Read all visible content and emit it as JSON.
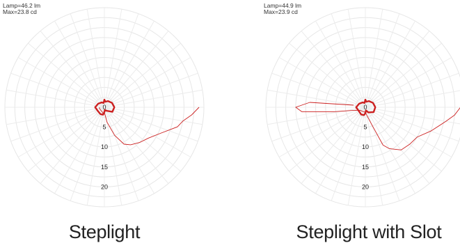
{
  "chart_data": [
    {
      "type": "polar",
      "title": "",
      "info": {
        "lamp": "Lamp=46.2 lm",
        "max": "Max=23.8 cd"
      },
      "radial_ticks": [
        "0",
        "5",
        "10",
        "15",
        "20"
      ],
      "rmax": 25,
      "caption": "Steplight",
      "curves": [
        {
          "name": "",
          "style": "thin",
          "angles_deg": [
            0,
            5,
            10,
            15,
            25,
            35,
            45,
            55,
            62,
            70,
            80,
            88,
            92,
            95,
            100,
            105,
            115,
            130,
            150,
            170,
            180
          ],
          "values_cd": [
            23.8,
            22.0,
            20.0,
            19.0,
            15.5,
            13.5,
            12.5,
            11.5,
            10.5,
            7.5,
            3.8,
            1.5,
            1.0,
            1.0,
            2.0,
            1.5,
            1.3,
            1.2,
            1.2,
            1.3,
            1.2
          ]
        },
        {
          "name": "",
          "style": "thick",
          "angles_deg": [
            0,
            30,
            60,
            80,
            90,
            100,
            120,
            150,
            180,
            210,
            240,
            260,
            270,
            280,
            300,
            330,
            360
          ],
          "values_cd": [
            2.5,
            2.3,
            1.0,
            0.7,
            1.2,
            1.9,
            2.0,
            1.9,
            2.3,
            1.8,
            1.4,
            1.1,
            1.9,
            1.4,
            1.8,
            2.2,
            2.5
          ]
        }
      ]
    },
    {
      "type": "polar",
      "title": "",
      "info": {
        "lamp": "Lamp=44.9 lm",
        "max": "Max=23.9 cd"
      },
      "radial_ticks": [
        "0",
        "5",
        "10",
        "15",
        "20"
      ],
      "rmax": 25,
      "caption": "Steplight with Slot",
      "curves": [
        {
          "name": "",
          "style": "thin",
          "angles_deg": [
            0,
            5,
            10,
            20,
            30,
            40,
            50,
            60,
            65,
            70,
            80,
            90,
            110,
            130,
            150,
            165,
            172,
            176,
            180,
            185,
            190
          ],
          "values_cd": [
            23.9,
            22.5,
            20.5,
            17.5,
            15.0,
            14.5,
            14.0,
            12.0,
            10.5,
            4.5,
            2.0,
            1.3,
            1.2,
            1.3,
            1.5,
            3.0,
            8.0,
            16.0,
            17.5,
            14.0,
            3.0
          ]
        },
        {
          "name": "",
          "style": "thick",
          "angles_deg": [
            0,
            30,
            60,
            80,
            90,
            100,
            120,
            150,
            180,
            210,
            240,
            260,
            270,
            280,
            300,
            330,
            360
          ],
          "values_cd": [
            2.5,
            2.4,
            1.5,
            0.8,
            1.5,
            2.0,
            2.1,
            1.9,
            2.3,
            1.8,
            1.4,
            1.1,
            1.9,
            1.4,
            1.8,
            2.2,
            2.5
          ]
        }
      ]
    }
  ],
  "colors": {
    "curve": "#cc2020",
    "grid": "#e6e6e6",
    "text": "#222222"
  }
}
